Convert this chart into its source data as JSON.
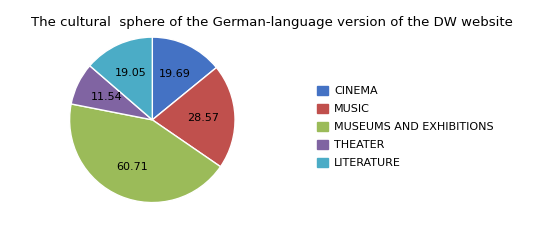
{
  "title": "The cultural  sphere of the German-language version of the DW website",
  "labels": [
    "CINEMA",
    "MUSIC",
    "MUSEUMS AND EXHIBITIONS",
    "THEATER",
    "LITERATURE"
  ],
  "values": [
    19.69,
    28.57,
    60.71,
    11.54,
    19.05
  ],
  "colors": [
    "#4472C4",
    "#C0504D",
    "#9BBB59",
    "#8064A2",
    "#4BACC6"
  ],
  "startangle": 90,
  "title_fontsize": 9.5,
  "label_fontsize": 8,
  "legend_fontsize": 8
}
